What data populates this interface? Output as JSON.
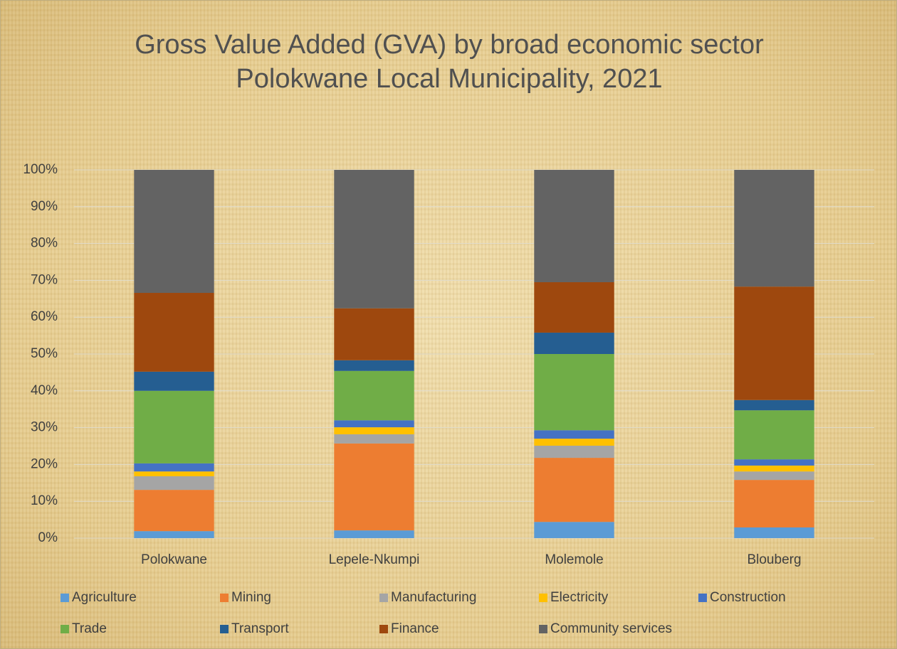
{
  "chart_data": {
    "type": "stacked_bar",
    "title": "Gross Value Added (GVA) by broad economic sector",
    "subtitle": "Polokwane Local Municipality, 2021",
    "categories": [
      "Polokwane",
      "Lepele-Nkumpi",
      "Molemole",
      "Blouberg"
    ],
    "series": [
      {
        "name": "Agriculture",
        "color": "#5b9bd5",
        "values": [
          1.9,
          2.1,
          4.4,
          2.9
        ]
      },
      {
        "name": "Mining",
        "color": "#ed7d31",
        "values": [
          11.2,
          23.6,
          17.4,
          12.9
        ]
      },
      {
        "name": "Manufacturing",
        "color": "#a5a5a5",
        "values": [
          3.7,
          2.5,
          3.3,
          2.3
        ]
      },
      {
        "name": "Electricity",
        "color": "#ffc000",
        "values": [
          1.3,
          1.9,
          1.9,
          1.6
        ]
      },
      {
        "name": "Construction",
        "color": "#4472c4",
        "values": [
          2.2,
          1.9,
          2.3,
          1.7
        ]
      },
      {
        "name": "Trade",
        "color": "#70ad47",
        "values": [
          19.7,
          13.4,
          20.7,
          13.3
        ]
      },
      {
        "name": "Transport",
        "color": "#255e91",
        "values": [
          5.2,
          2.9,
          5.8,
          2.8
        ]
      },
      {
        "name": "Finance",
        "color": "#9e480e",
        "values": [
          21.4,
          14.1,
          13.7,
          30.8
        ]
      },
      {
        "name": "Community services",
        "color": "#636363",
        "values": [
          33.4,
          37.6,
          30.5,
          31.7
        ]
      }
    ],
    "ylim": [
      0,
      100
    ],
    "yticks": [
      {
        "value": 0,
        "label": "0%"
      },
      {
        "value": 10,
        "label": "10%"
      },
      {
        "value": 20,
        "label": "20%"
      },
      {
        "value": 30,
        "label": "30%"
      },
      {
        "value": 40,
        "label": "40%"
      },
      {
        "value": 50,
        "label": "50%"
      },
      {
        "value": 60,
        "label": "60%"
      },
      {
        "value": 70,
        "label": "70%"
      },
      {
        "value": 80,
        "label": "80%"
      },
      {
        "value": 90,
        "label": "90%"
      },
      {
        "value": 100,
        "label": "100%"
      }
    ],
    "grid": true,
    "legend": "bottom"
  }
}
